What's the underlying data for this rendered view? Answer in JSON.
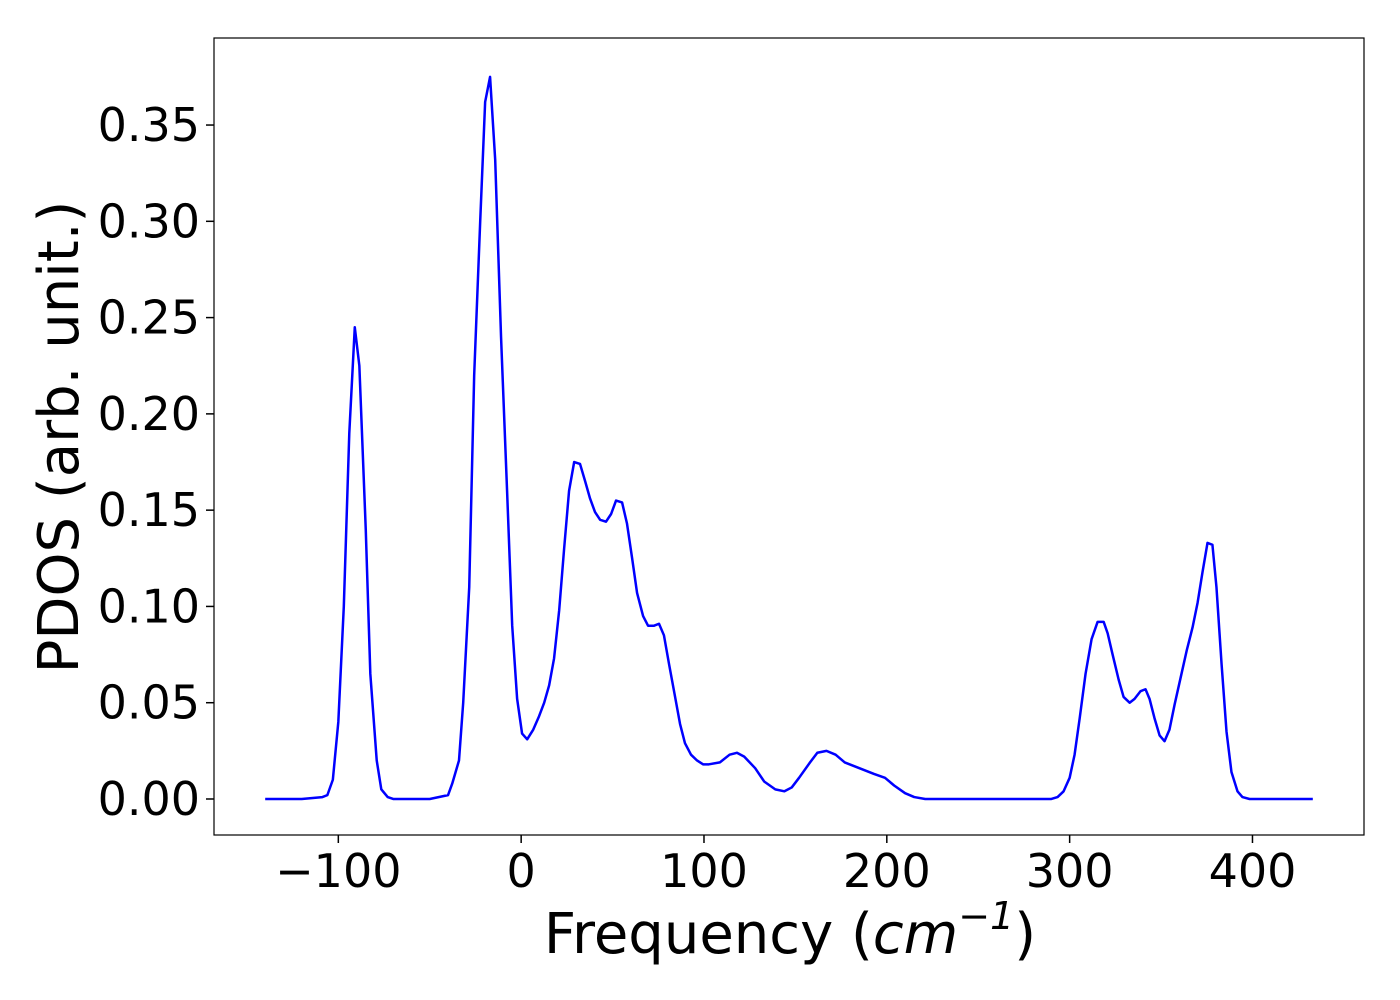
{
  "chart_data": {
    "type": "line",
    "x_label": {
      "prefix": "Frequency (",
      "unit": "cm",
      "exponent": "−1",
      "suffix": ")"
    },
    "y_label": "PDOS (arb. unit.)",
    "color": "#0000ff",
    "x": [
      -140,
      -120,
      -108.7,
      -106,
      -103,
      -100,
      -97,
      -94,
      -91,
      -88.5,
      -85,
      -82.5,
      -79,
      -76.5,
      -73,
      -70,
      -60,
      -50,
      -40,
      -37.7,
      -34,
      -31.7,
      -28.4,
      -25.7,
      -22.4,
      -19.7,
      -17,
      -14.2,
      -11,
      -7.7,
      -4.9,
      -2.2,
      0.5,
      3.3,
      6.6,
      9.8,
      12.6,
      15.3,
      18,
      20.8,
      23.5,
      26.2,
      29,
      32.2,
      35,
      37.7,
      40.4,
      43.2,
      46.4,
      49.2,
      51.9,
      55.2,
      57.9,
      60.7,
      63.4,
      66.7,
      69.4,
      72.7,
      75.4,
      78.1,
      80.9,
      84.2,
      86.9,
      89.6,
      92.9,
      96.2,
      99.5,
      102.7,
      108.7,
      114,
      118,
      122,
      128,
      133,
      139,
      144,
      148,
      152,
      158,
      162,
      167,
      172,
      177,
      185,
      193,
      199,
      204,
      210,
      215,
      221,
      250,
      290,
      293.4,
      296.7,
      300,
      302.7,
      305.5,
      308.7,
      312,
      315.3,
      318.6,
      320.8,
      323.5,
      326.8,
      329.5,
      332.8,
      335.5,
      338.8,
      341.5,
      343.7,
      346.4,
      349.2,
      351.9,
      354.6,
      357.4,
      360.7,
      364,
      367.2,
      370,
      372.7,
      375.4,
      378.1,
      380.3,
      383.1,
      385.8,
      388.5,
      391.8,
      394.5,
      398.4,
      420,
      433
    ],
    "values": [
      0,
      0,
      0.001,
      0.002,
      0.01,
      0.04,
      0.1,
      0.19,
      0.245,
      0.225,
      0.14,
      0.065,
      0.02,
      0.005,
      0.001,
      0,
      0,
      0,
      0.002,
      0.008,
      0.02,
      0.05,
      0.11,
      0.22,
      0.3,
      0.362,
      0.375,
      0.332,
      0.24,
      0.16,
      0.09,
      0.052,
      0.034,
      0.031,
      0.036,
      0.043,
      0.05,
      0.059,
      0.073,
      0.098,
      0.13,
      0.16,
      0.175,
      0.174,
      0.165,
      0.156,
      0.149,
      0.145,
      0.144,
      0.148,
      0.155,
      0.154,
      0.143,
      0.125,
      0.107,
      0.095,
      0.09,
      0.09,
      0.091,
      0.085,
      0.07,
      0.053,
      0.039,
      0.029,
      0.023,
      0.02,
      0.018,
      0.018,
      0.019,
      0.023,
      0.024,
      0.022,
      0.016,
      0.009,
      0.005,
      0.004,
      0.006,
      0.011,
      0.019,
      0.024,
      0.025,
      0.023,
      0.019,
      0.016,
      0.013,
      0.011,
      0.007,
      0.003,
      0.001,
      0,
      0,
      0,
      0.001,
      0.004,
      0.011,
      0.023,
      0.042,
      0.065,
      0.083,
      0.092,
      0.092,
      0.086,
      0.075,
      0.062,
      0.053,
      0.05,
      0.052,
      0.056,
      0.057,
      0.052,
      0.042,
      0.033,
      0.03,
      0.036,
      0.049,
      0.063,
      0.077,
      0.089,
      0.102,
      0.118,
      0.133,
      0.132,
      0.11,
      0.07,
      0.035,
      0.014,
      0.004,
      0.001,
      0,
      0,
      0
    ],
    "xlim": [
      -168,
      461
    ],
    "xticks": [
      {
        "value": -100,
        "label": "−100"
      },
      0,
      100,
      200,
      300,
      400
    ],
    "ylim": [
      -0.0187,
      0.3952
    ],
    "yticks": [
      {
        "value": 0,
        "label": "0.00"
      },
      0.05,
      {
        "value": 0.1,
        "label": "0.10"
      },
      0.15,
      {
        "value": 0.2,
        "label": "0.20"
      },
      0.25,
      {
        "value": 0.3,
        "label": "0.30"
      },
      0.35
    ],
    "grid": false
  }
}
